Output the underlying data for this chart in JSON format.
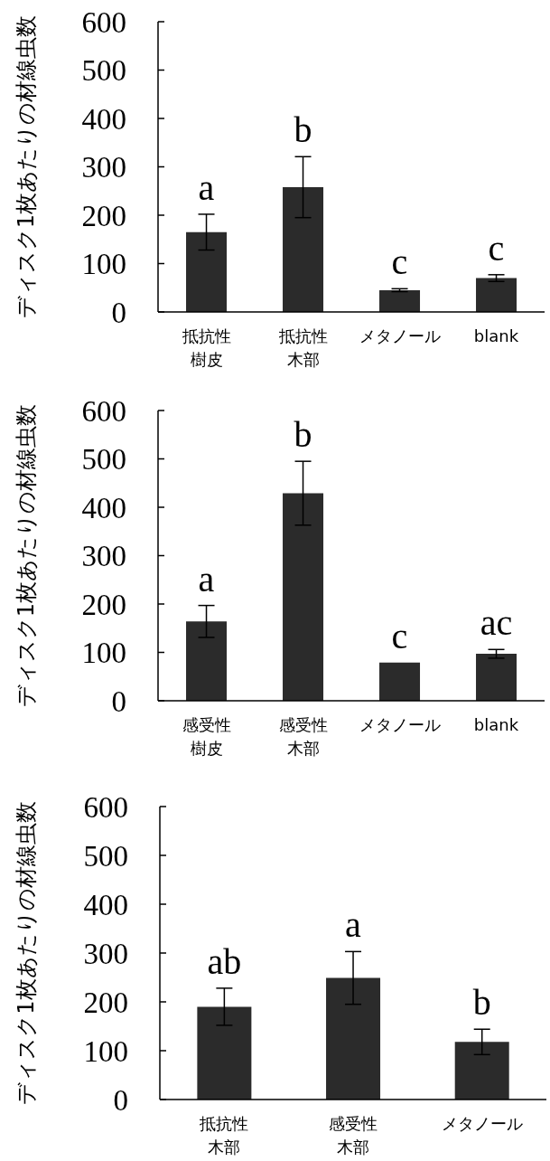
{
  "chart_data": [
    {
      "type": "bar",
      "ylabel": "ディスク1枚あたりの材線虫数",
      "categories": [
        "抵抗性樹皮",
        "抵抗性木部",
        "メタノール",
        "blank"
      ],
      "values": [
        165,
        258,
        45,
        70
      ],
      "errors": [
        37,
        63,
        3,
        7
      ],
      "color": "#2b2b2b",
      "ylim": [
        0,
        600
      ],
      "yticks": [
        0,
        100,
        200,
        300,
        400,
        500,
        600
      ],
      "annotations": [
        "a",
        "b",
        "c",
        "c"
      ]
    },
    {
      "type": "bar",
      "ylabel": "ディスク1枚あたりの材線虫数",
      "categories": [
        "感受性樹皮",
        "感受性木部",
        "メタノール",
        "blank"
      ],
      "values": [
        164,
        429,
        79,
        97
      ],
      "errors": [
        33,
        66,
        null,
        9
      ],
      "color": "#2b2b2b",
      "ylim": [
        0,
        600
      ],
      "yticks": [
        0,
        100,
        200,
        300,
        400,
        500,
        600
      ],
      "annotations": [
        "a",
        "b",
        "c",
        "ac"
      ]
    },
    {
      "type": "bar",
      "ylabel": "ディスク1枚あたりの材線虫数",
      "categories": [
        "抵抗性木部",
        "感受性木部",
        "メタノール"
      ],
      "values": [
        190,
        249,
        118
      ],
      "errors": [
        38,
        54,
        26
      ],
      "color": "#2b2b2b",
      "ylim": [
        0,
        600
      ],
      "yticks": [
        0,
        100,
        200,
        300,
        400,
        500,
        600
      ],
      "annotations": [
        "ab",
        "a",
        "b"
      ]
    }
  ]
}
